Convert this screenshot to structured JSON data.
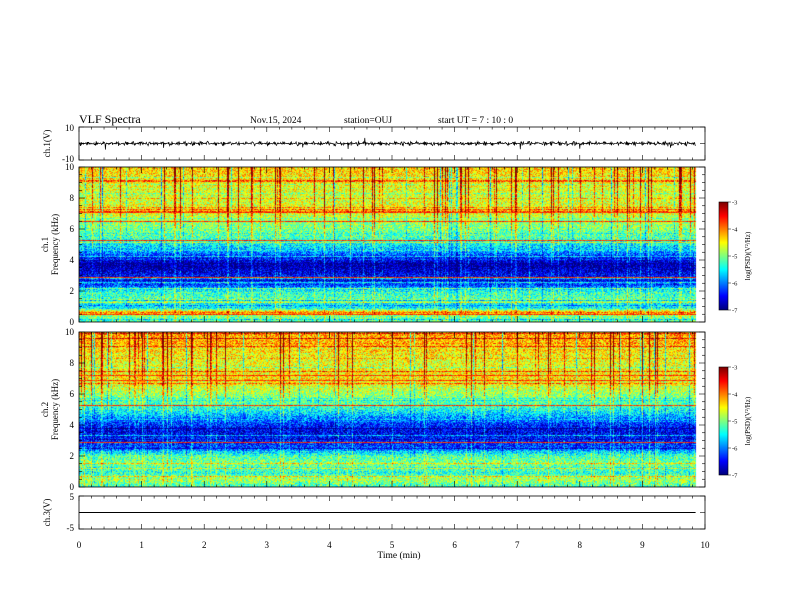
{
  "header": {
    "title": "VLF Spectra",
    "date": "Nov.15, 2024",
    "station": "station=OUJ",
    "start_ut": "start  UT =   7 : 10 : 0"
  },
  "chart_data": [
    {
      "id": "waveform-ch1",
      "type": "line",
      "ylabel": "ch.1(V)",
      "ylim": [
        -10,
        10
      ],
      "yticklabels": [
        "10",
        "-10"
      ],
      "signal": {
        "mean": 0,
        "amplitude": 1.5,
        "spikes": 3.5
      },
      "xlim": [
        0,
        10
      ]
    },
    {
      "id": "spectrogram-ch1",
      "type": "heatmap",
      "ylabel": "ch.1\nFrequency (kHz)",
      "ylim": [
        0,
        10
      ],
      "yticks": [
        0,
        2,
        4,
        6,
        8,
        10
      ],
      "xlim": [
        0,
        10
      ],
      "data_xmax": 9.85,
      "colorbar": {
        "label": "log(PSD)(V²/Hz)",
        "min": -7,
        "max": -3,
        "ticks": [
          -3,
          -4,
          -5,
          -6,
          -7
        ]
      },
      "frequency_profile_kHz_to_logPSD": [
        [
          0,
          -5.2
        ],
        [
          0.4,
          -5.0
        ],
        [
          0.6,
          -3.9
        ],
        [
          0.9,
          -5.6
        ],
        [
          1.2,
          -5.5
        ],
        [
          1.6,
          -5.2
        ],
        [
          2.0,
          -5.4
        ],
        [
          2.4,
          -6.3
        ],
        [
          3.0,
          -6.5
        ],
        [
          3.6,
          -6.9
        ],
        [
          4.0,
          -6.6
        ],
        [
          4.6,
          -5.8
        ],
        [
          5.5,
          -5.2
        ],
        [
          6.5,
          -4.9
        ],
        [
          7.2,
          -4.5
        ],
        [
          8.0,
          -4.7
        ],
        [
          9.0,
          -4.5
        ],
        [
          10.0,
          -4.3
        ]
      ],
      "persistent_tones_kHz": [
        7.1,
        6.5,
        5.3,
        2.9,
        0.5
      ]
    },
    {
      "id": "spectrogram-ch2",
      "type": "heatmap",
      "ylabel": "ch.2\nFrequency (kHz)",
      "ylim": [
        0,
        10
      ],
      "yticks": [
        0,
        2,
        4,
        6,
        8,
        10
      ],
      "xlim": [
        0,
        10
      ],
      "data_xmax": 9.85,
      "colorbar": {
        "label": "log(PSD)(V²/Hz)",
        "min": -7,
        "max": -3,
        "ticks": [
          -3,
          -4,
          -5,
          -6,
          -7
        ]
      },
      "frequency_profile_kHz_to_logPSD": [
        [
          0,
          -5.3
        ],
        [
          0.5,
          -4.8
        ],
        [
          0.9,
          -5.4
        ],
        [
          1.5,
          -5.0
        ],
        [
          2.0,
          -5.2
        ],
        [
          2.5,
          -6.2
        ],
        [
          3.0,
          -6.4
        ],
        [
          3.6,
          -6.6
        ],
        [
          4.2,
          -6.2
        ],
        [
          5.0,
          -5.4
        ],
        [
          6.0,
          -4.9
        ],
        [
          7.0,
          -4.4
        ],
        [
          8.0,
          -4.6
        ],
        [
          9.0,
          -4.3
        ],
        [
          10.0,
          -4.1
        ]
      ],
      "persistent_tones_kHz": [
        7.2,
        6.9,
        5.3,
        2.9
      ]
    },
    {
      "id": "waveform-ch3",
      "type": "line",
      "ylabel": "ch.3(V)",
      "ylim": [
        -5,
        5
      ],
      "yticklabels": [
        "5",
        "-5"
      ],
      "signal": {
        "mean": 0,
        "amplitude": 0,
        "spikes": 0
      },
      "xlim": [
        0,
        10
      ]
    }
  ],
  "xaxis": {
    "label": "Time (min)",
    "ticks": [
      0,
      1,
      2,
      3,
      4,
      5,
      6,
      7,
      8,
      9,
      10
    ],
    "xlim": [
      0,
      10
    ]
  }
}
